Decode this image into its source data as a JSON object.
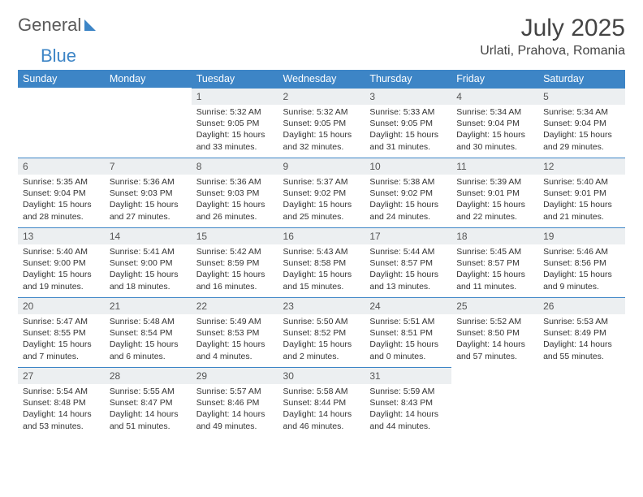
{
  "brand": {
    "part1": "General",
    "part2": "Blue"
  },
  "title": "July 2025",
  "location": "Urlati, Prahova, Romania",
  "colors": {
    "header_bg": "#3d85c6",
    "header_text": "#ffffff",
    "daynum_bg": "#eceff1",
    "daynum_border": "#3d85c6",
    "body_text": "#333333",
    "page_bg": "#ffffff"
  },
  "typography": {
    "title_fontsize": 30,
    "location_fontsize": 16,
    "weekday_fontsize": 12.5,
    "daynum_fontsize": 12,
    "cell_fontsize": 10.5
  },
  "weekdays": [
    "Sunday",
    "Monday",
    "Tuesday",
    "Wednesday",
    "Thursday",
    "Friday",
    "Saturday"
  ],
  "weeks": [
    [
      null,
      null,
      {
        "n": "1",
        "sr": "5:32 AM",
        "ss": "9:05 PM",
        "dl": "15 hours and 33 minutes."
      },
      {
        "n": "2",
        "sr": "5:32 AM",
        "ss": "9:05 PM",
        "dl": "15 hours and 32 minutes."
      },
      {
        "n": "3",
        "sr": "5:33 AM",
        "ss": "9:05 PM",
        "dl": "15 hours and 31 minutes."
      },
      {
        "n": "4",
        "sr": "5:34 AM",
        "ss": "9:04 PM",
        "dl": "15 hours and 30 minutes."
      },
      {
        "n": "5",
        "sr": "5:34 AM",
        "ss": "9:04 PM",
        "dl": "15 hours and 29 minutes."
      }
    ],
    [
      {
        "n": "6",
        "sr": "5:35 AM",
        "ss": "9:04 PM",
        "dl": "15 hours and 28 minutes."
      },
      {
        "n": "7",
        "sr": "5:36 AM",
        "ss": "9:03 PM",
        "dl": "15 hours and 27 minutes."
      },
      {
        "n": "8",
        "sr": "5:36 AM",
        "ss": "9:03 PM",
        "dl": "15 hours and 26 minutes."
      },
      {
        "n": "9",
        "sr": "5:37 AM",
        "ss": "9:02 PM",
        "dl": "15 hours and 25 minutes."
      },
      {
        "n": "10",
        "sr": "5:38 AM",
        "ss": "9:02 PM",
        "dl": "15 hours and 24 minutes."
      },
      {
        "n": "11",
        "sr": "5:39 AM",
        "ss": "9:01 PM",
        "dl": "15 hours and 22 minutes."
      },
      {
        "n": "12",
        "sr": "5:40 AM",
        "ss": "9:01 PM",
        "dl": "15 hours and 21 minutes."
      }
    ],
    [
      {
        "n": "13",
        "sr": "5:40 AM",
        "ss": "9:00 PM",
        "dl": "15 hours and 19 minutes."
      },
      {
        "n": "14",
        "sr": "5:41 AM",
        "ss": "9:00 PM",
        "dl": "15 hours and 18 minutes."
      },
      {
        "n": "15",
        "sr": "5:42 AM",
        "ss": "8:59 PM",
        "dl": "15 hours and 16 minutes."
      },
      {
        "n": "16",
        "sr": "5:43 AM",
        "ss": "8:58 PM",
        "dl": "15 hours and 15 minutes."
      },
      {
        "n": "17",
        "sr": "5:44 AM",
        "ss": "8:57 PM",
        "dl": "15 hours and 13 minutes."
      },
      {
        "n": "18",
        "sr": "5:45 AM",
        "ss": "8:57 PM",
        "dl": "15 hours and 11 minutes."
      },
      {
        "n": "19",
        "sr": "5:46 AM",
        "ss": "8:56 PM",
        "dl": "15 hours and 9 minutes."
      }
    ],
    [
      {
        "n": "20",
        "sr": "5:47 AM",
        "ss": "8:55 PM",
        "dl": "15 hours and 7 minutes."
      },
      {
        "n": "21",
        "sr": "5:48 AM",
        "ss": "8:54 PM",
        "dl": "15 hours and 6 minutes."
      },
      {
        "n": "22",
        "sr": "5:49 AM",
        "ss": "8:53 PM",
        "dl": "15 hours and 4 minutes."
      },
      {
        "n": "23",
        "sr": "5:50 AM",
        "ss": "8:52 PM",
        "dl": "15 hours and 2 minutes."
      },
      {
        "n": "24",
        "sr": "5:51 AM",
        "ss": "8:51 PM",
        "dl": "15 hours and 0 minutes."
      },
      {
        "n": "25",
        "sr": "5:52 AM",
        "ss": "8:50 PM",
        "dl": "14 hours and 57 minutes."
      },
      {
        "n": "26",
        "sr": "5:53 AM",
        "ss": "8:49 PM",
        "dl": "14 hours and 55 minutes."
      }
    ],
    [
      {
        "n": "27",
        "sr": "5:54 AM",
        "ss": "8:48 PM",
        "dl": "14 hours and 53 minutes."
      },
      {
        "n": "28",
        "sr": "5:55 AM",
        "ss": "8:47 PM",
        "dl": "14 hours and 51 minutes."
      },
      {
        "n": "29",
        "sr": "5:57 AM",
        "ss": "8:46 PM",
        "dl": "14 hours and 49 minutes."
      },
      {
        "n": "30",
        "sr": "5:58 AM",
        "ss": "8:44 PM",
        "dl": "14 hours and 46 minutes."
      },
      {
        "n": "31",
        "sr": "5:59 AM",
        "ss": "8:43 PM",
        "dl": "14 hours and 44 minutes."
      },
      null,
      null
    ]
  ],
  "labels": {
    "sunrise": "Sunrise: ",
    "sunset": "Sunset: ",
    "daylight": "Daylight: "
  }
}
